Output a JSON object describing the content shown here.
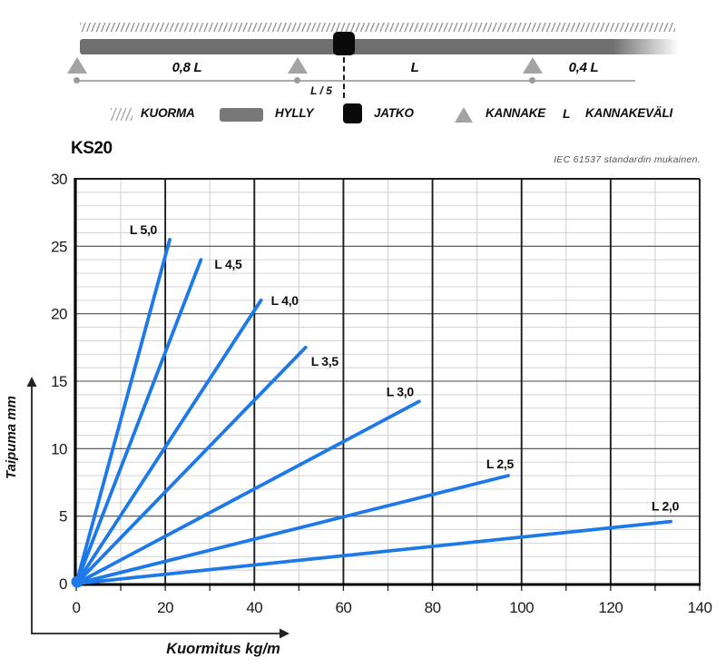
{
  "header": {
    "title": "KS20",
    "note": "IEC 61537 standardin mukainen."
  },
  "diagram": {
    "spans": {
      "left": "0,8 L",
      "mid": "L",
      "right": "0,4 L",
      "joint_offset": "L / 5"
    },
    "legend": [
      {
        "id": "kuorma",
        "label": "KUORMA"
      },
      {
        "id": "hylly",
        "label": "HYLLY"
      },
      {
        "id": "jatko",
        "label": "JATKO"
      },
      {
        "id": "kannake",
        "label": "KANNAKE"
      },
      {
        "id": "kannakevali",
        "symbol": "L",
        "label": "KANNAKEVÄLI"
      }
    ],
    "colors": {
      "shelf": "#6f6f6f",
      "support": "#a3a3a3",
      "joint": "#0a0a0a",
      "hatch": "#9a9a9a"
    }
  },
  "chart_data": {
    "type": "line",
    "title": "KS20",
    "note": "IEC 61537 standardin mukainen.",
    "xlabel": "Kuormitus kg/m",
    "ylabel": "Taipuma mm",
    "xlim": [
      0,
      140
    ],
    "ylim": [
      0,
      30
    ],
    "x_major_ticks": [
      0,
      20,
      40,
      60,
      80,
      100,
      120,
      140
    ],
    "y_major_ticks": [
      0,
      5,
      10,
      15,
      20,
      25,
      30
    ],
    "x_minor_step": 10,
    "y_minor_step": 1,
    "grid": true,
    "legend_position": "inline-labels",
    "line_color": "#1d79e8",
    "series": [
      {
        "name": "L 5,0",
        "points": [
          [
            0,
            0
          ],
          [
            21,
            25.5
          ]
        ],
        "label_anchor": "end",
        "label_dx": -14,
        "label_dy": -6
      },
      {
        "name": "L 4,5",
        "points": [
          [
            0,
            0
          ],
          [
            28,
            24
          ]
        ],
        "label_anchor": "start",
        "label_dx": 15,
        "label_dy": 10
      },
      {
        "name": "L 4,0",
        "points": [
          [
            0,
            0
          ],
          [
            41.5,
            21
          ]
        ],
        "label_anchor": "start",
        "label_dx": 11,
        "label_dy": 5
      },
      {
        "name": "L 3,5",
        "points": [
          [
            0,
            0
          ],
          [
            51.5,
            17.5
          ]
        ],
        "label_anchor": "start",
        "label_dx": 6,
        "label_dy": 20
      },
      {
        "name": "L 3,0",
        "points": [
          [
            0,
            0
          ],
          [
            77,
            13.5
          ]
        ],
        "label_anchor": "end",
        "label_dx": -6,
        "label_dy": -6
      },
      {
        "name": "L 2,5",
        "points": [
          [
            0,
            0
          ],
          [
            97,
            8
          ]
        ],
        "label_anchor": "end",
        "label_dx": 6,
        "label_dy": -8
      },
      {
        "name": "L 2,0",
        "points": [
          [
            0,
            0
          ],
          [
            133.5,
            4.6
          ]
        ],
        "label_anchor": "end",
        "label_dx": 9,
        "label_dy": -12
      }
    ]
  }
}
